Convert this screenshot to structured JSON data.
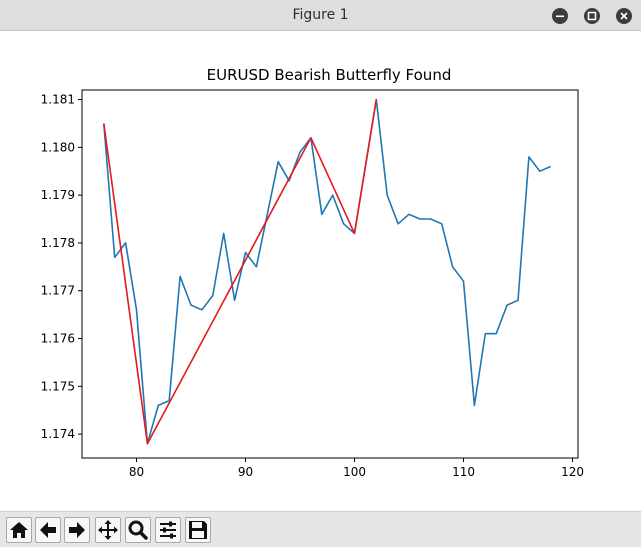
{
  "window": {
    "title": "Figure 1",
    "controls": [
      "minimize",
      "maximize",
      "close"
    ]
  },
  "toolbar": {
    "tools": [
      "home-icon",
      "back-icon",
      "forward-icon",
      "pan-icon",
      "zoom-icon",
      "configure-subplots-icon",
      "save-icon"
    ]
  },
  "chart_data": {
    "type": "line",
    "title": "EURUSD Bearish Butterfly Found",
    "xlabel": "",
    "ylabel": "",
    "xlim": [
      75,
      120.5
    ],
    "ylim": [
      1.1735,
      1.1812
    ],
    "xticks": [
      80,
      90,
      100,
      110,
      120
    ],
    "yticks": [
      1.174,
      1.175,
      1.176,
      1.177,
      1.178,
      1.179,
      1.18,
      1.181
    ],
    "xtick_labels": [
      "80",
      "90",
      "100",
      "110",
      "120"
    ],
    "ytick_labels": [
      "1.174",
      "1.175",
      "1.176",
      "1.177",
      "1.178",
      "1.179",
      "1.180",
      "1.181"
    ],
    "grid": false,
    "colors": {
      "price": "#1f77b4",
      "pattern": "#e41a1c"
    },
    "series": [
      {
        "role": "price",
        "x": [
          77,
          78,
          79,
          80,
          81,
          82,
          83,
          84,
          85,
          86,
          87,
          88,
          89,
          90,
          91,
          92,
          93,
          94,
          95,
          96,
          97,
          98,
          99,
          100,
          101,
          102,
          103,
          104,
          105,
          106,
          107,
          108,
          109,
          110,
          111,
          112,
          113,
          114,
          115,
          116,
          117,
          118
        ],
        "y": [
          1.1805,
          1.1777,
          1.178,
          1.1766,
          1.1738,
          1.1746,
          1.1747,
          1.1773,
          1.1767,
          1.1766,
          1.1769,
          1.1782,
          1.1768,
          1.1778,
          1.1775,
          1.1786,
          1.1797,
          1.1793,
          1.1799,
          1.1802,
          1.1786,
          1.179,
          1.1784,
          1.1782,
          1.1796,
          1.181,
          1.179,
          1.1784,
          1.1786,
          1.1785,
          1.1785,
          1.1784,
          1.1775,
          1.1772,
          1.1746,
          1.1761,
          1.1761,
          1.1767,
          1.1768,
          1.1798,
          1.1795,
          1.1796
        ]
      },
      {
        "role": "pattern",
        "x": [
          77,
          81,
          96,
          100,
          102
        ],
        "y": [
          1.1805,
          1.1738,
          1.1802,
          1.1782,
          1.181
        ]
      }
    ]
  }
}
